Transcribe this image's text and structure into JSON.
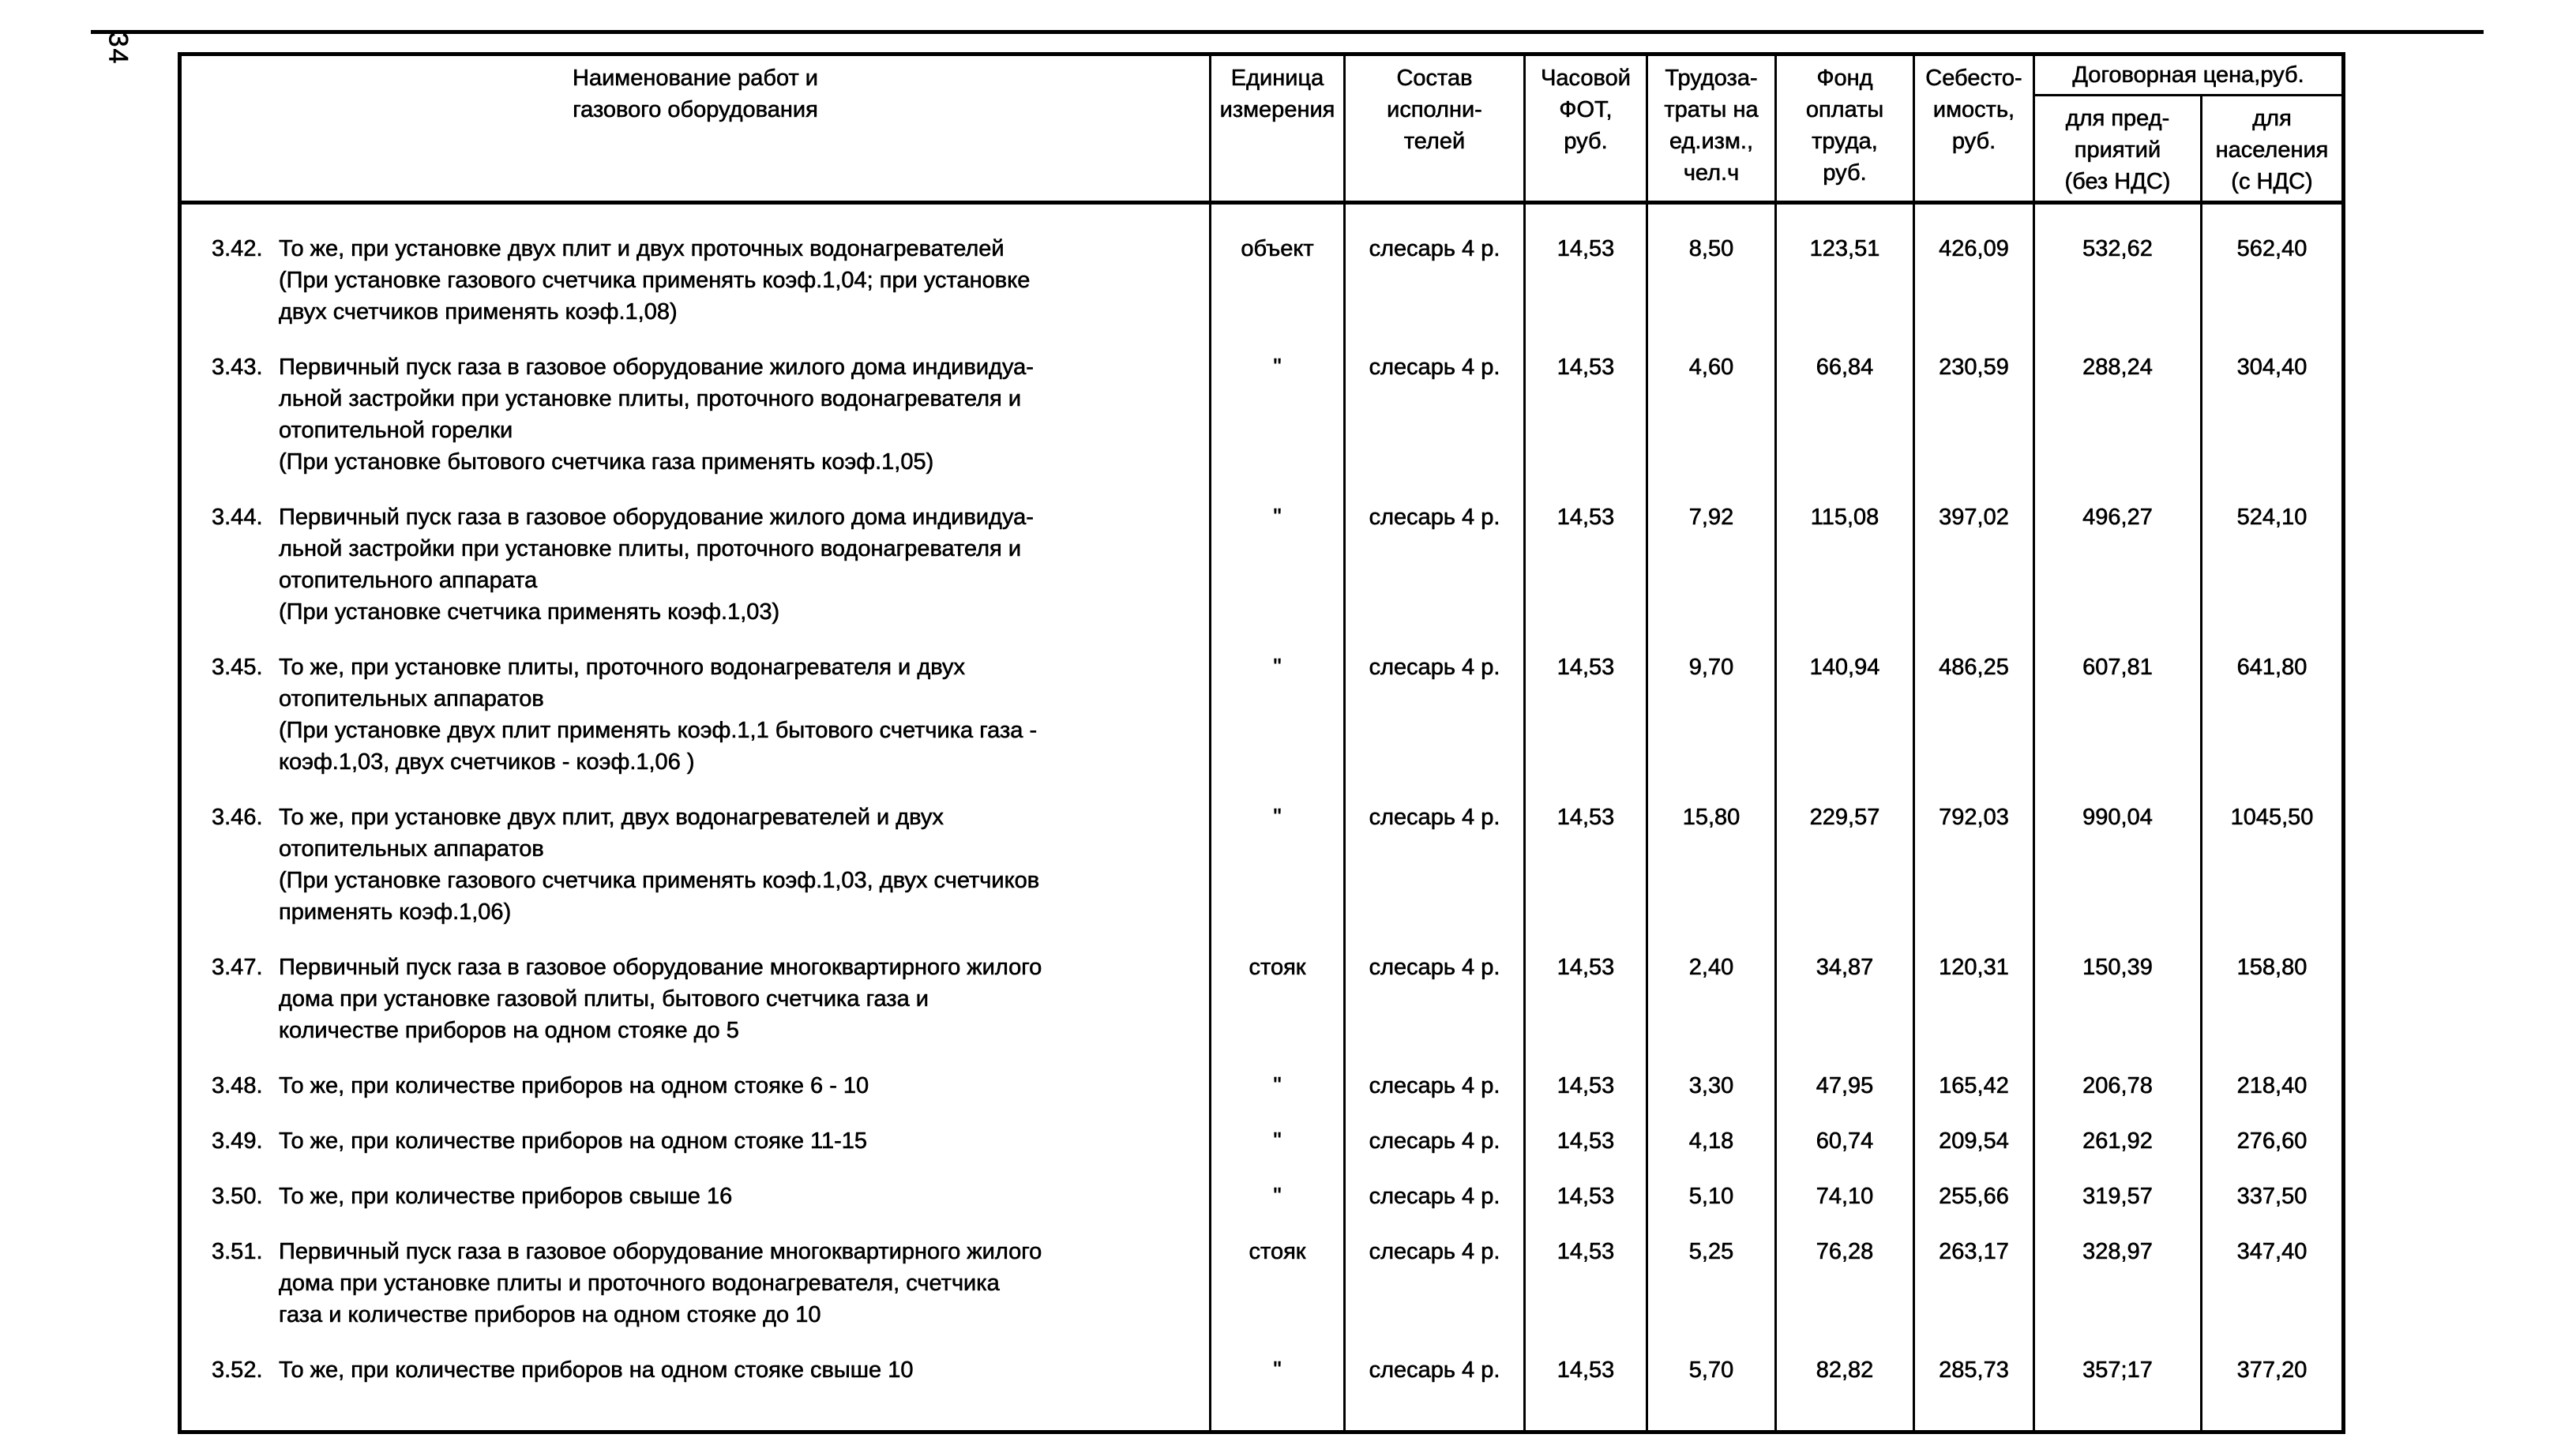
{
  "page": {
    "number": "34"
  },
  "table": {
    "header": {
      "work": "Наименование работ и\nгазового оборудования",
      "unit": "Единица\nизмерения",
      "crew": "Состав\nисполни-\nтелей",
      "fot": "Часовой\nФОТ,\nруб.",
      "labor": "Трудоза-\nтраты на\nед.изм.,\nчел.ч",
      "fund": "Фонд\nоплаты\nтруда,\nруб.",
      "cost": "Себесто-\nимость,\nруб.",
      "contract": "Договорная цена,руб.",
      "enterprises": "для пред-\nприятий\n(без НДС)",
      "population": "для\nнаселения\n(с НДС)"
    },
    "rows": [
      {
        "num": "3.42.",
        "desc": "То же, при установке двух плит и двух проточных водонагревателей\n(При установке газового счетчика применять коэф.1,04; при установке\nдвух счетчиков применять коэф.1,08)",
        "unit": "объект",
        "crew": "слесарь 4 р.",
        "fot": "14,53",
        "labor": "8,50",
        "fund": "123,51",
        "cost": "426,09",
        "price_ent": "532,62",
        "price_pop": "562,40"
      },
      {
        "num": "3.43.",
        "desc": "Первичный пуск газа в газовое оборудование жилого дома индивидуа-\nльной застройки при установке плиты, проточного водонагревателя и\nотопительной горелки\n(При установке бытового счетчика газа применять коэф.1,05)",
        "unit": "\"",
        "crew": "слесарь 4 р.",
        "fot": "14,53",
        "labor": "4,60",
        "fund": "66,84",
        "cost": "230,59",
        "price_ent": "288,24",
        "price_pop": "304,40"
      },
      {
        "num": "3.44.",
        "desc": "Первичный пуск газа в газовое оборудование жилого дома индивидуа-\nльной застройки при установке плиты, проточного водонагревателя и\nотопительного аппарата\n(При установке счетчика применять коэф.1,03)",
        "unit": "\"",
        "crew": "слесарь 4 р.",
        "fot": "14,53",
        "labor": "7,92",
        "fund": "115,08",
        "cost": "397,02",
        "price_ent": "496,27",
        "price_pop": "524,10"
      },
      {
        "num": "3.45.",
        "desc": "То же, при установке плиты, проточного водонагревателя и  двух\nотопительных аппаратов\n(При установке двух плит применять коэф.1,1 бытового счетчика газа -\nкоэф.1,03, двух счетчиков -  коэф.1,06 )",
        "unit": "\"",
        "crew": "слесарь 4 р.",
        "fot": "14,53",
        "labor": "9,70",
        "fund": "140,94",
        "cost": "486,25",
        "price_ent": "607,81",
        "price_pop": "641,80"
      },
      {
        "num": "3.46.",
        "desc": "То же, при установке двух плит, двух водонагревателей и двух\nотопительных аппаратов\n(При установке газового счетчика применять коэф.1,03, двух счетчиков\nприменять коэф.1,06)",
        "unit": "\"",
        "crew": "слесарь 4 р.",
        "fot": "14,53",
        "labor": "15,80",
        "fund": "229,57",
        "cost": "792,03",
        "price_ent": "990,04",
        "price_pop": "1045,50"
      },
      {
        "num": "3.47.",
        "desc": "Первичный пуск газа в газовое оборудование многоквартирного жилого\nдома при установке газовой плиты, бытового счетчика газа  и\nколичестве приборов на одном стояке до 5",
        "unit": "стояк",
        "crew": "слесарь 4 р.",
        "fot": "14,53",
        "labor": "2,40",
        "fund": "34,87",
        "cost": "120,31",
        "price_ent": "150,39",
        "price_pop": "158,80"
      },
      {
        "num": "3.48.",
        "desc": "То же, при количестве приборов на одном стояке 6 - 10",
        "unit": "\"",
        "crew": "слесарь 4 р.",
        "fot": "14,53",
        "labor": "3,30",
        "fund": "47,95",
        "cost": "165,42",
        "price_ent": "206,78",
        "price_pop": "218,40"
      },
      {
        "num": "3.49.",
        "desc": "То же, при количестве приборов на одном стояке 11-15",
        "unit": "\"",
        "crew": "слесарь 4 р.",
        "fot": "14,53",
        "labor": "4,18",
        "fund": "60,74",
        "cost": "209,54",
        "price_ent": "261,92",
        "price_pop": "276,60"
      },
      {
        "num": "3.50.",
        "desc": "То же, при количестве приборов свыше 16",
        "unit": "\"",
        "crew": "слесарь 4 р.",
        "fot": "14,53",
        "labor": "5,10",
        "fund": "74,10",
        "cost": "255,66",
        "price_ent": "319,57",
        "price_pop": "337,50"
      },
      {
        "num": "3.51.",
        "desc": "Первичный пуск газа в газовое оборудование многоквартирного жилого\nдома при установке плиты и  проточного водонагревателя,  счетчика\nгаза и количестве приборов на одном стояке до 10",
        "unit": "стояк",
        "crew": "слесарь 4 р.",
        "fot": "14,53",
        "labor": "5,25",
        "fund": "76,28",
        "cost": "263,17",
        "price_ent": "328,97",
        "price_pop": "347,40"
      },
      {
        "num": "3.52.",
        "desc": "То же, при количестве приборов на одном стояке свыше 10",
        "unit": "\"",
        "crew": "слесарь 4 р.",
        "fot": "14,53",
        "labor": "5,70",
        "fund": "82,82",
        "cost": "285,73",
        "price_ent": "357;17",
        "price_pop": "377,20"
      }
    ]
  }
}
